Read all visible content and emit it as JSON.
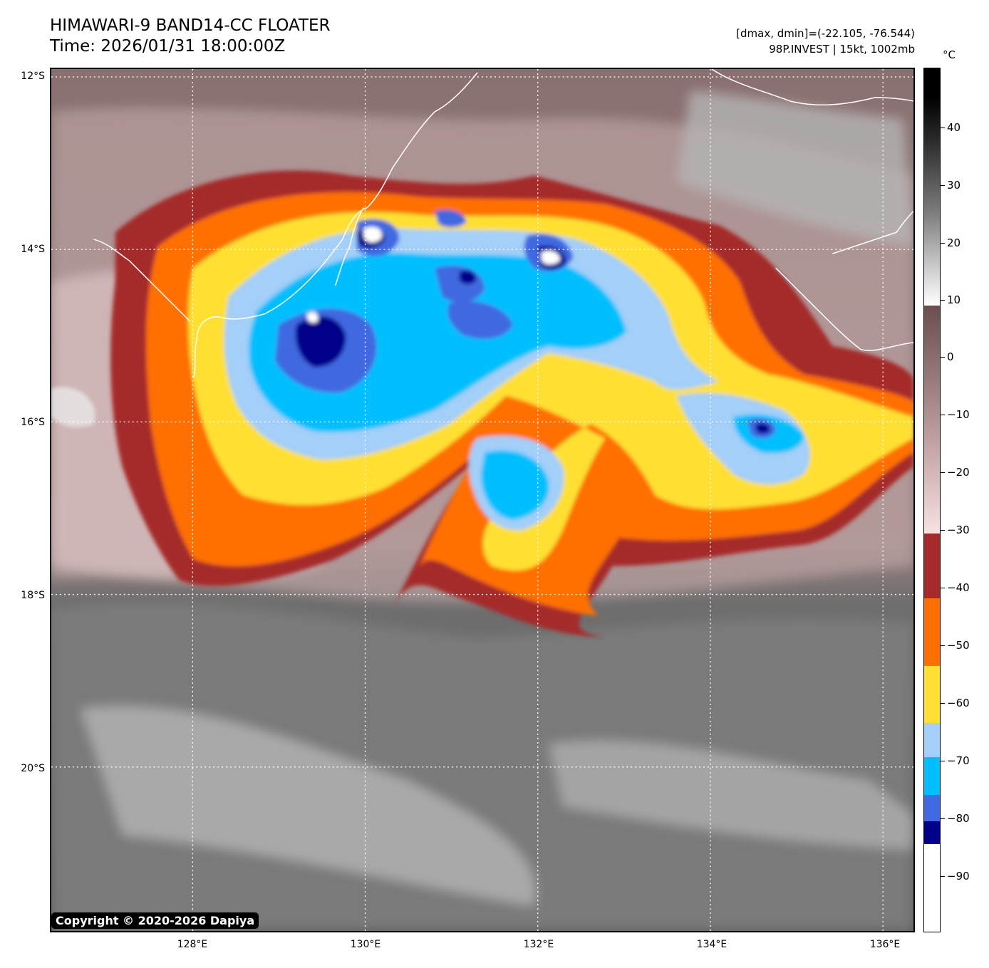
{
  "header": {
    "title_line1": "HIMAWARI-9 BAND14-CC FLOATER",
    "title_line2": "Time: 2026/01/31 18:00:00Z",
    "meta_line1": "[dmax, dmin]=(-22.105, -76.544)",
    "meta_line2": "98P.INVEST | 15kt, 1002mb"
  },
  "map": {
    "latitude_labels": [
      "12°S",
      "14°S",
      "16°S",
      "18°S",
      "20°S"
    ],
    "longitude_labels": [
      "128°E",
      "130°E",
      "132°E",
      "134°E",
      "136°E"
    ],
    "gridlines": "dotted white",
    "coastline_color": "#ffffff"
  },
  "copyright": "Copyright © 2020-2026 Dapiya",
  "colorbar": {
    "unit": "°C",
    "tick_labels": [
      "40",
      "30",
      "20",
      "10",
      "0",
      "−10",
      "−20",
      "−30",
      "−40",
      "−50",
      "−60",
      "−70",
      "−80",
      "−90"
    ],
    "colors": {
      "cold_below_-85": "#ffffff",
      "-85_to_-81": "#00008b",
      "-81_to_-77": "#4169e1",
      "-77_to_-70": "#00bfff",
      "-70_to_-65": "#a3cff8",
      "-65_to_-57": "#ffe033",
      "-57_to_-45": "#ff7000",
      "-45_to_-34": "#a52a2a",
      "warm_gradient_start": "#f7e2e2",
      "warm_gradient_end": "#6b4f4f",
      "gray_start": "#ffffff",
      "gray_end": "#000000"
    }
  }
}
